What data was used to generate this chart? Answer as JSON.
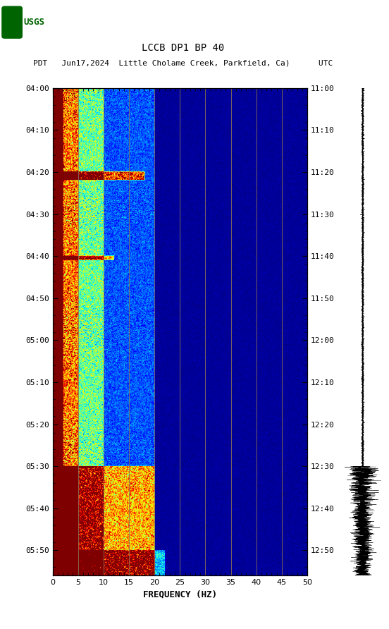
{
  "title_line1": "LCCB DP1 BP 40",
  "title_line2": "PDT   Jun17,2024  Little Cholame Creek, Parkfield, Ca)      UTC",
  "xlabel": "FREQUENCY (HZ)",
  "freq_min": 0,
  "freq_max": 50,
  "freq_ticks": [
    0,
    5,
    10,
    15,
    20,
    25,
    30,
    35,
    40,
    45,
    50
  ],
  "yticks_left": [
    "04:00",
    "04:10",
    "04:20",
    "04:30",
    "04:40",
    "04:50",
    "05:00",
    "05:10",
    "05:20",
    "05:30",
    "05:40",
    "05:50"
  ],
  "yticks_right": [
    "11:00",
    "11:10",
    "11:20",
    "11:30",
    "11:40",
    "11:50",
    "12:00",
    "12:10",
    "12:20",
    "12:30",
    "12:40",
    "12:50"
  ],
  "ytick_positions": [
    0,
    10,
    20,
    30,
    40,
    50,
    60,
    70,
    80,
    90,
    100,
    110
  ],
  "time_total_min": 116,
  "vertical_lines_freq": [
    5,
    10,
    15,
    20,
    25,
    30,
    35,
    40,
    45
  ],
  "fig_width": 5.52,
  "fig_height": 8.92,
  "background_color": "#ffffff",
  "spectrogram_bg": "#000080",
  "logo_color": "#006400",
  "vline_color": "#8B7355",
  "waveform_color": "#000000"
}
